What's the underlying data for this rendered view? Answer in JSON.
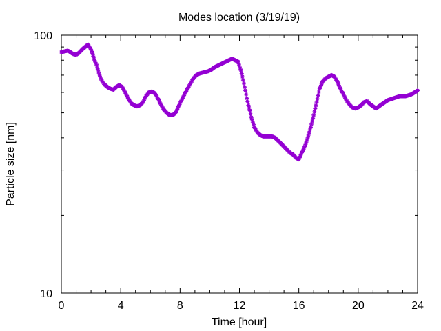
{
  "chart_data": {
    "type": "scatter",
    "title": "Modes location (3/19/19)",
    "xlabel": "Time [hour]",
    "ylabel": "Particle size [nm]",
    "xlim": [
      0,
      24
    ],
    "ylim": [
      10,
      100
    ],
    "yscale": "log",
    "grid": false,
    "legend": "none",
    "marker_color": "#9400d3",
    "x_ticks": [
      0,
      4,
      8,
      12,
      16,
      20,
      24
    ],
    "x_tick_labels": [
      "0",
      "4",
      "8",
      "12",
      "16",
      "20",
      "24"
    ],
    "y_ticks": [
      10,
      100
    ],
    "y_tick_labels": [
      "10",
      "100"
    ],
    "series": [
      {
        "x": [
          0,
          0.2,
          0.4,
          0.5,
          0.6,
          0.8,
          1.0,
          1.2,
          1.4,
          1.6,
          1.8,
          2.0,
          2.1,
          2.2,
          2.4,
          2.5,
          2.7,
          2.9,
          3.1,
          3.3,
          3.5,
          3.7,
          3.9,
          4.1,
          4.3,
          4.5,
          4.7,
          4.9,
          5.1,
          5.3,
          5.5,
          5.7,
          5.9,
          6.1,
          6.3,
          6.5,
          6.7,
          6.9,
          7.1,
          7.3,
          7.5,
          7.7,
          7.9,
          8.1,
          8.3,
          8.5,
          8.7,
          8.9,
          9.1,
          9.3,
          9.5,
          9.7,
          9.9,
          10.1,
          10.3,
          10.5,
          10.7,
          10.9,
          11.1,
          11.3,
          11.5,
          11.7,
          11.9,
          12.0,
          12.1,
          12.2,
          12.3,
          12.4,
          12.5,
          12.6,
          12.7,
          12.8,
          12.9,
          13.0,
          13.2,
          13.4,
          13.6,
          13.8,
          14.0,
          14.2,
          14.4,
          14.6,
          14.8,
          15.0,
          15.2,
          15.4,
          15.6,
          15.8,
          16.0,
          16.2,
          16.4,
          16.6,
          16.8,
          17.0,
          17.2,
          17.4,
          17.6,
          17.8,
          18.0,
          18.2,
          18.4,
          18.6,
          18.8,
          19.0,
          19.2,
          19.4,
          19.6,
          19.8,
          20.0,
          20.2,
          20.4,
          20.6,
          20.8,
          21.0,
          21.2,
          21.4,
          21.6,
          21.8,
          22.0,
          22.2,
          22.4,
          22.6,
          22.8,
          23.0,
          23.2,
          23.4,
          23.6,
          23.8,
          24.0
        ],
        "y": [
          86,
          86.5,
          87,
          86.8,
          86,
          84.5,
          84,
          85.5,
          88,
          90,
          92,
          88,
          85,
          81,
          76,
          72,
          67,
          64.5,
          63,
          62,
          61.5,
          63,
          64,
          63,
          60,
          57,
          54.5,
          53.5,
          53,
          53.5,
          55,
          58,
          60,
          60.5,
          59.5,
          57,
          54,
          51.5,
          50,
          49,
          49,
          50,
          53,
          56,
          59,
          62,
          65,
          68,
          70,
          71,
          71.5,
          72,
          72.5,
          73.5,
          75,
          76,
          77,
          78,
          79,
          80,
          81,
          80,
          79,
          76,
          73,
          69,
          65,
          61,
          57,
          53.5,
          51,
          48,
          46,
          44,
          42,
          41,
          40.5,
          40.5,
          40.5,
          40.5,
          40,
          39,
          38,
          37,
          36,
          35,
          34.5,
          33.5,
          33,
          35,
          37,
          40,
          44,
          49,
          55,
          62,
          66,
          68,
          69,
          70,
          69,
          66,
          62,
          59,
          56,
          54,
          52.5,
          52,
          52.5,
          53.5,
          55,
          55.5,
          54,
          53,
          52,
          53,
          54,
          55,
          56,
          56.5,
          57,
          57.5,
          58,
          58,
          58,
          58.5,
          59,
          60,
          61
        ]
      }
    ]
  }
}
